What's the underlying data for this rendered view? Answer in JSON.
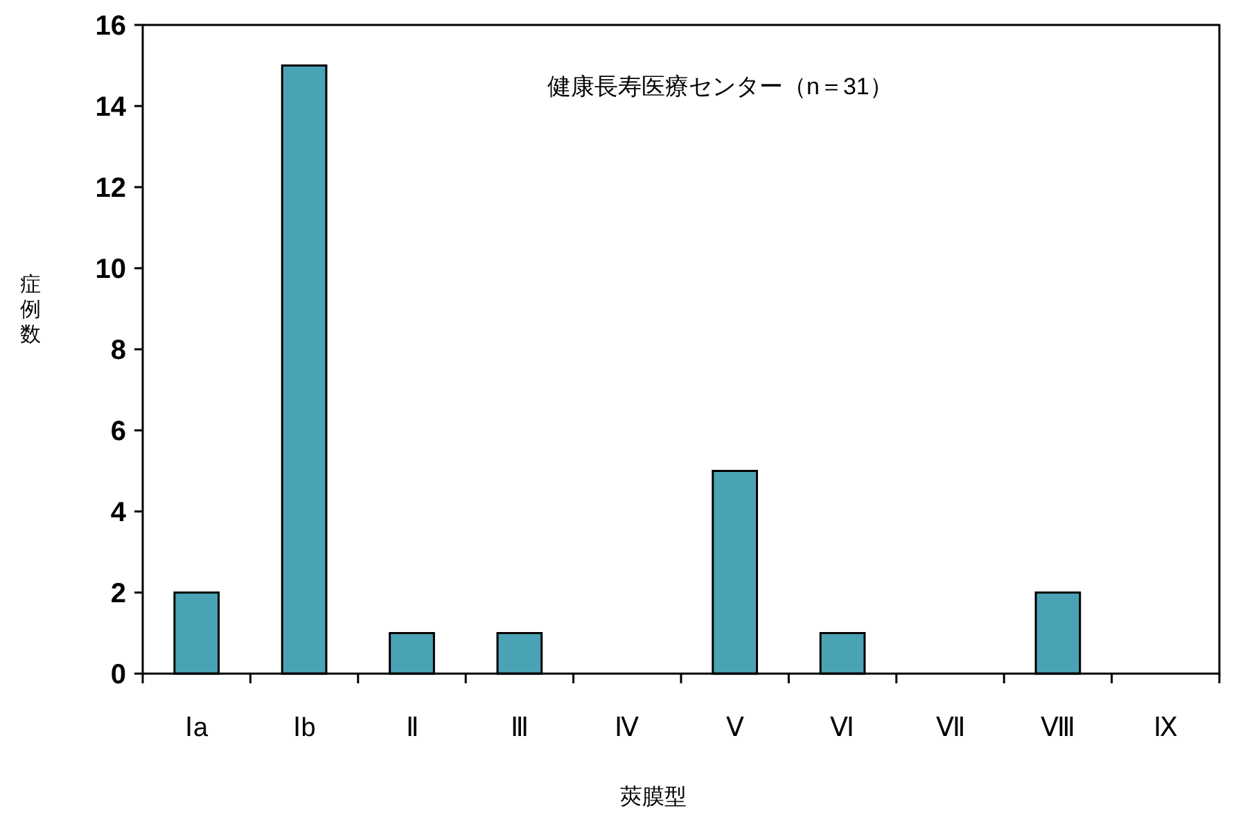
{
  "chart_data": {
    "type": "bar",
    "xlabel": "莢膜型",
    "ylabel": "症例数",
    "annotations": [
      "健康長寿医療センター（n＝31）"
    ],
    "categories": [
      "Ⅰa",
      "Ⅰb",
      "Ⅱ",
      "Ⅲ",
      "Ⅳ",
      "Ⅴ",
      "Ⅵ",
      "Ⅶ",
      "Ⅷ",
      "Ⅸ"
    ],
    "values": [
      2,
      15,
      1,
      1,
      0,
      5,
      1,
      0,
      2,
      0
    ],
    "color": "#4aa3b5",
    "ylim": [
      0,
      16
    ],
    "yticks": [
      0,
      2,
      4,
      6,
      8,
      10,
      12,
      14,
      16
    ],
    "grid": false
  }
}
